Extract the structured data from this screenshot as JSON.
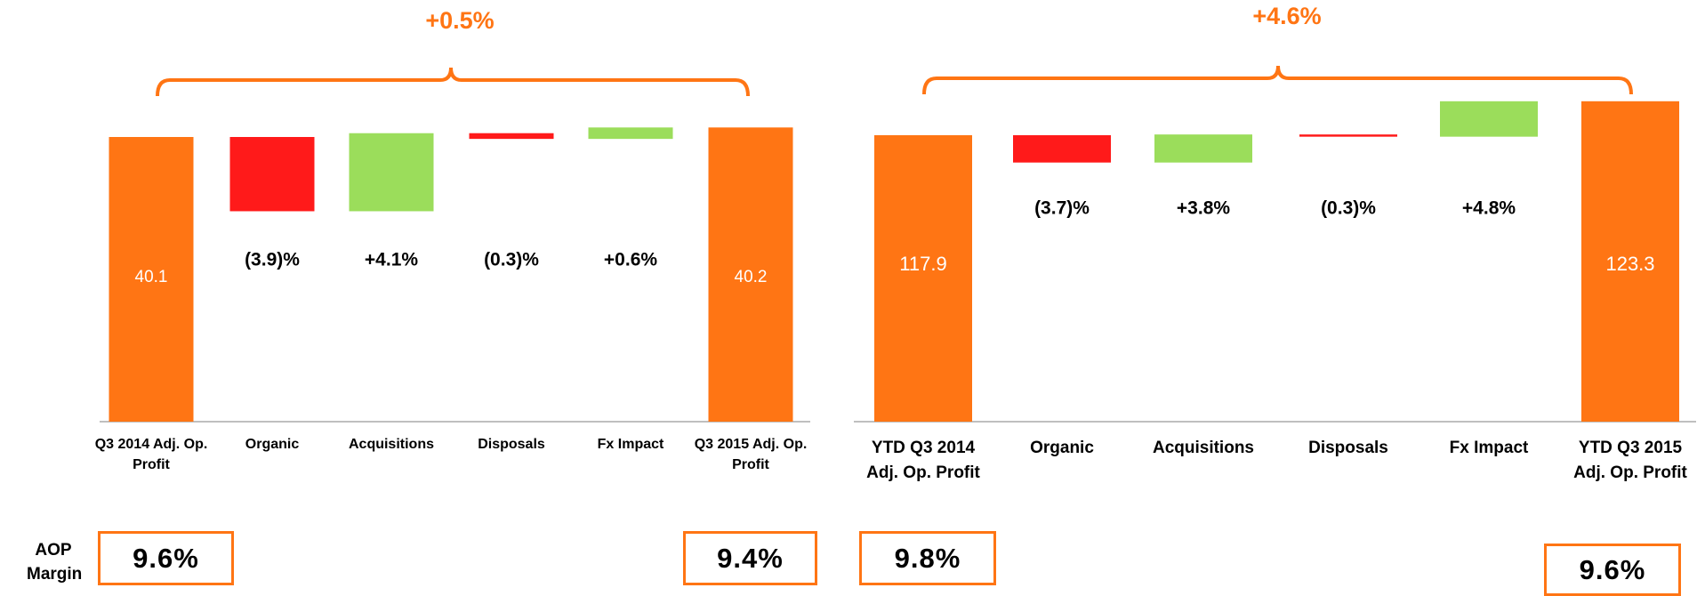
{
  "aop_margin_label": "AOP Margin",
  "chart_data": [
    {
      "type": "waterfall",
      "categories": [
        "Q3 2014 Adj. Op. Profit",
        "Organic",
        "Acquisitions",
        "Disposals",
        "Fx Impact",
        "Q3 2015 Adj. Op. Profit"
      ],
      "values": [
        40.1,
        -3.9,
        4.1,
        -0.3,
        0.6,
        40.2
      ],
      "value_labels": [
        "40.1",
        "(3.9)%",
        "+4.1%",
        "(0.3)%",
        "+0.6%",
        "40.2"
      ],
      "change": 0.5,
      "change_label": "+0.5%",
      "margins": [
        "9.6%",
        "9.4%"
      ],
      "colors": {
        "total": "#ff7514",
        "decrease": "#ff1a1a",
        "increase": "#9bdd5b"
      }
    },
    {
      "type": "waterfall",
      "categories": [
        "YTD Q3 2014 Adj. Op. Profit",
        "Organic",
        "Acquisitions",
        "Disposals",
        "Fx Impact",
        "YTD Q3 2015 Adj. Op. Profit"
      ],
      "values": [
        117.9,
        -3.7,
        3.8,
        -0.3,
        4.8,
        123.3
      ],
      "value_labels": [
        "117.9",
        "(3.7)%",
        "+3.8%",
        "(0.3)%",
        "+4.8%",
        "123.3"
      ],
      "change": 4.6,
      "change_label": "+4.6%",
      "margins": [
        "9.8%",
        "9.6%"
      ],
      "colors": {
        "total": "#ff7514",
        "decrease": "#ff1a1a",
        "increase": "#9bdd5b"
      }
    }
  ]
}
